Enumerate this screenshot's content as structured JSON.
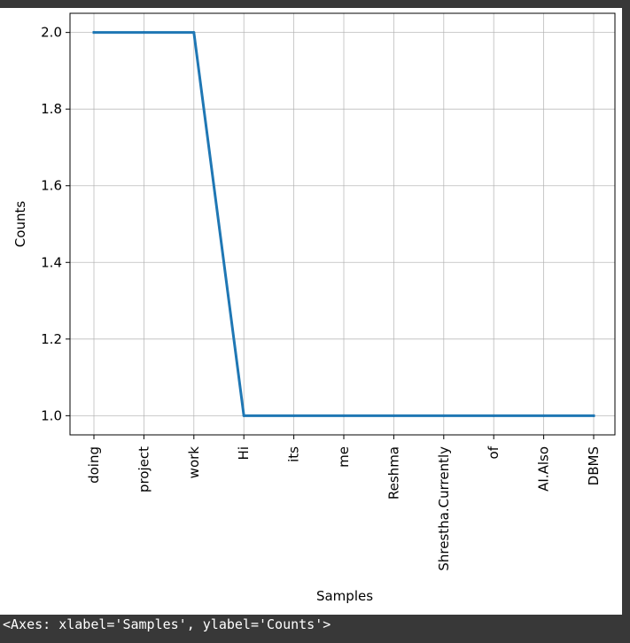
{
  "chart_data": {
    "type": "line",
    "categories": [
      "doing",
      "project",
      "work",
      "Hi",
      "its",
      "me",
      "Reshma",
      "Shrestha.Currently",
      "of",
      "AI.Also",
      "DBMS"
    ],
    "values": [
      2,
      2,
      2,
      1,
      1,
      1,
      1,
      1,
      1,
      1,
      1
    ],
    "xlabel": "Samples",
    "ylabel": "Counts",
    "ylim": [
      0.95,
      2.05
    ],
    "yticks": [
      1.0,
      1.2,
      1.4,
      1.6,
      1.8,
      2.0
    ],
    "ytick_labels": [
      "1.0",
      "1.2",
      "1.4",
      "1.6",
      "1.8",
      "2.0"
    ],
    "grid": true,
    "line_color": "#1f77b4",
    "x_tick_rotation": "vertical"
  },
  "output": {
    "text": "<Axes: xlabel='Samples', ylabel='Counts'>"
  }
}
